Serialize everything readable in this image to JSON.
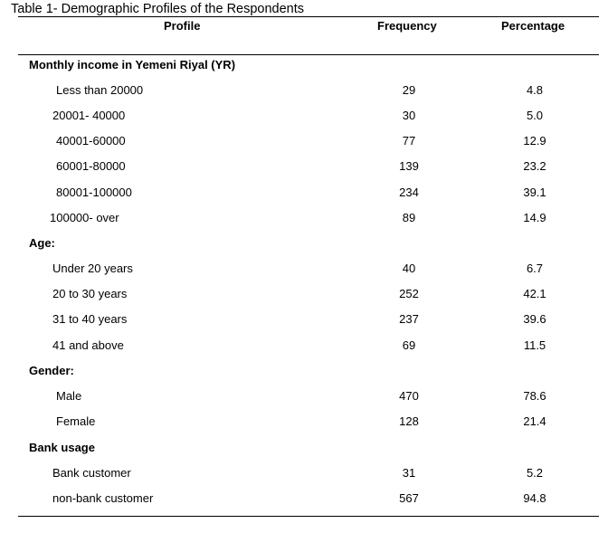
{
  "caption": "Table 1- Demographic Profiles of the Respondents",
  "headers": {
    "profile": "Profile",
    "frequency": "Frequency",
    "percentage": "Percentage"
  },
  "sections": {
    "income": {
      "title": "Monthly  income in Yemeni Riyal (YR)",
      "rows": [
        {
          "label": "Less than 20000",
          "frequency": "29",
          "percentage": "4.8"
        },
        {
          "label": "20001- 40000",
          "frequency": "30",
          "percentage": "5.0"
        },
        {
          "label": "40001-60000",
          "frequency": "77",
          "percentage": "12.9"
        },
        {
          "label": "60001-80000",
          "frequency": "139",
          "percentage": "23.2"
        },
        {
          "label": "80001-100000",
          "frequency": "234",
          "percentage": "39.1"
        },
        {
          "label": "100000- over",
          "frequency": "89",
          "percentage": "14.9"
        }
      ]
    },
    "age": {
      "title": "Age:",
      "rows": [
        {
          "label": "Under 20 years",
          "frequency": "40",
          "percentage": "6.7"
        },
        {
          "label": "20 to 30 years",
          "frequency": "252",
          "percentage": "42.1"
        },
        {
          "label": "31 to 40 years",
          "frequency": "237",
          "percentage": "39.6"
        },
        {
          "label": "41 and above",
          "frequency": "69",
          "percentage": "11.5"
        }
      ]
    },
    "gender": {
      "title": "Gender:",
      "rows": [
        {
          "label": "Male",
          "frequency": "470",
          "percentage": "78.6"
        },
        {
          "label": "Female",
          "frequency": "128",
          "percentage": "21.4"
        }
      ]
    },
    "bank": {
      "title": "Bank usage",
      "rows": [
        {
          "label": "Bank customer",
          "frequency": "31",
          "percentage": "5.2"
        },
        {
          "label": "non-bank customer",
          "frequency": "567",
          "percentage": "94.8"
        }
      ]
    }
  }
}
